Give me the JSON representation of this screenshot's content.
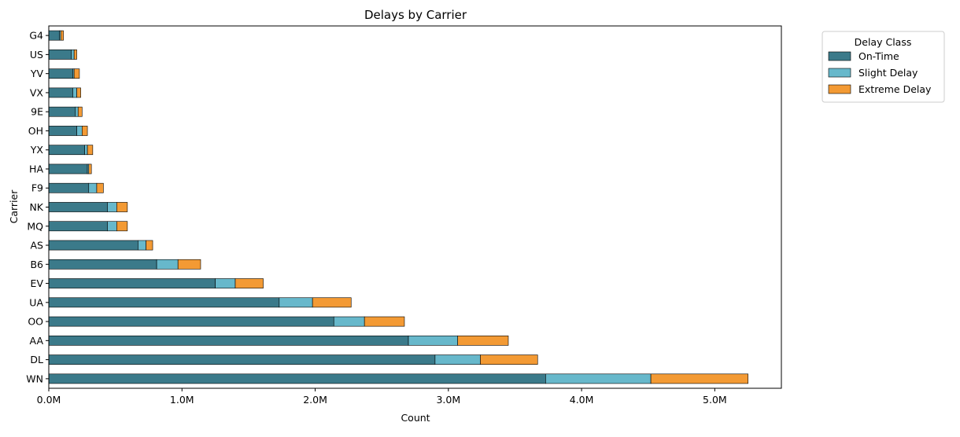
{
  "chart_data": {
    "type": "bar",
    "orientation": "horizontal",
    "stacked": true,
    "title": "Delays by Carrier",
    "xlabel": "Count",
    "ylabel": "Carrier",
    "xlim": [
      0,
      5500000
    ],
    "x_ticks": [
      0,
      1000000,
      2000000,
      3000000,
      4000000,
      5000000
    ],
    "x_tick_labels": [
      "0.0M",
      "1.0M",
      "2.0M",
      "3.0M",
      "4.0M",
      "5.0M"
    ],
    "grid": false,
    "legend": {
      "title": "Delay Class",
      "placement": "outside-top-right"
    },
    "categories": [
      "WN",
      "DL",
      "AA",
      "OO",
      "UA",
      "EV",
      "B6",
      "AS",
      "MQ",
      "NK",
      "F9",
      "HA",
      "YX",
      "OH",
      "9E",
      "VX",
      "YV",
      "US",
      "G4"
    ],
    "series": [
      {
        "name": "On-Time",
        "color": "#3b7a8a",
        "values": [
          3730000,
          2900000,
          2700000,
          2140000,
          1730000,
          1250000,
          810000,
          670000,
          440000,
          440000,
          300000,
          290000,
          270000,
          210000,
          200000,
          180000,
          180000,
          170000,
          80000
        ]
      },
      {
        "name": "Slight Delay",
        "color": "#67b8cb",
        "values": [
          790000,
          340000,
          370000,
          230000,
          250000,
          150000,
          160000,
          60000,
          70000,
          70000,
          60000,
          10000,
          20000,
          40000,
          20000,
          30000,
          10000,
          20000,
          10000
        ]
      },
      {
        "name": "Extreme Delay",
        "color": "#f39a34",
        "values": [
          730000,
          430000,
          380000,
          300000,
          290000,
          210000,
          170000,
          50000,
          80000,
          80000,
          50000,
          20000,
          40000,
          40000,
          30000,
          30000,
          40000,
          20000,
          20000
        ]
      }
    ]
  }
}
